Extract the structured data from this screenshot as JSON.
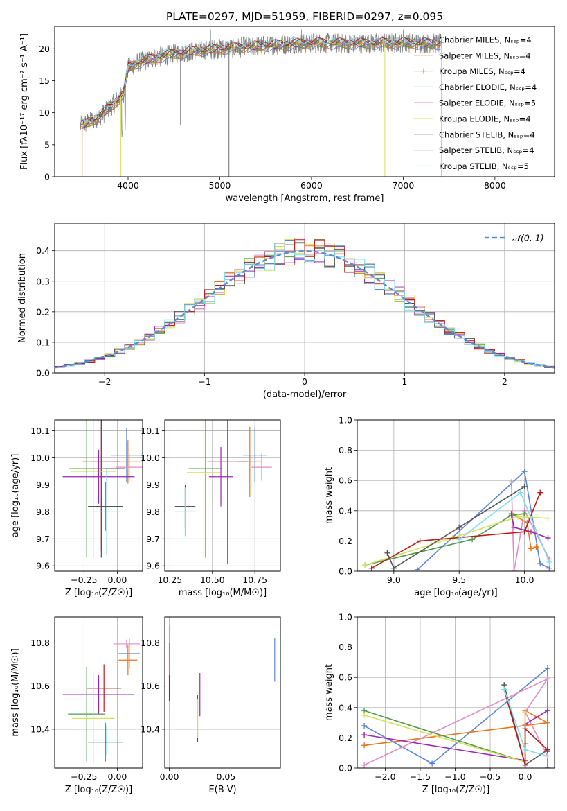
{
  "figure": {
    "title": "PLATE=0297, MJD=51959, FIBERID=0297, z=0.095"
  },
  "chart_data": [
    {
      "type": "line",
      "id": "spectrum",
      "xlabel": "wavelength [Angstrom, rest frame]",
      "ylabel": "Flux [fλ10⁻¹⁷ erg cm⁻² s⁻¹ A⁻¹]",
      "xlim": [
        3200,
        8650
      ],
      "ylim": [
        0,
        23.5
      ],
      "xticks": [
        4000,
        5000,
        6000,
        7000,
        8000
      ],
      "yticks": [
        0,
        5,
        10,
        15,
        20
      ],
      "grid": false,
      "legend_position": "upper right",
      "continuum": {
        "x": [
          3500,
          3700,
          3850,
          3950,
          4000,
          4100,
          4300,
          4500,
          4700,
          5000,
          5500,
          6000,
          6500,
          7000,
          7400
        ],
        "y": [
          8.0,
          9.5,
          11.5,
          13.0,
          17.0,
          17.8,
          18.6,
          19.2,
          19.6,
          20.0,
          20.5,
          20.9,
          20.8,
          20.9,
          20.8
        ]
      },
      "data_range": [
        3480,
        7420
      ],
      "series": [
        {
          "name": "Chabrier MILES, N_SSP=4",
          "color": "#5b84d6",
          "marker": "+"
        },
        {
          "name": "Salpeter MILES, N_SSP=4",
          "color": "#e8751a"
        },
        {
          "name": "Kroupa MILES, N_SSP=4",
          "color": "#b07e1c",
          "marker": "+"
        },
        {
          "name": "Chabrier ELODIE, N_SSP=4",
          "color": "#4f9a4f"
        },
        {
          "name": "Salpeter ELODIE, N_SSP=5",
          "color": "#9b27b0"
        },
        {
          "name": "Kroupa ELODIE, N_SSP=4",
          "color": "#d4e157"
        },
        {
          "name": "Chabrier STELIB, N_SSP=4",
          "color": "#555555"
        },
        {
          "name": "Salpeter STELIB, N_SSP=4",
          "color": "#b71c1c"
        },
        {
          "name": "Kroupa STELIB, N_SSP=5",
          "color": "#80deea"
        }
      ],
      "data_series_color": "#808080"
    },
    {
      "type": "line",
      "id": "residuals",
      "xlabel": "(data-model)/error",
      "ylabel": "Normed distribution",
      "xlim": [
        -2.5,
        2.5
      ],
      "ylim": [
        0,
        0.49
      ],
      "xticks": [
        -2,
        -1,
        0,
        1,
        2
      ],
      "yticks": [
        0.0,
        0.1,
        0.2,
        0.3,
        0.4
      ],
      "grid": true,
      "legend_position": "upper right",
      "reference": {
        "name": "𝒩(0, 1)",
        "color": "#5b8ad6"
      },
      "histogram_colors": [
        "#5b84d6",
        "#e8751a",
        "#e48bc2",
        "#4f9a4f",
        "#9b27b0",
        "#d4e157",
        "#555555",
        "#b71c1c",
        "#80deea"
      ]
    },
    {
      "type": "scatter",
      "id": "age-vs-Z",
      "xlabel": "Z [log₁₀(Z/Z☉)]",
      "ylabel": "age  [log₁₀(age/yr)]",
      "xlim": [
        -0.47,
        0.19
      ],
      "ylim": [
        9.58,
        10.14
      ],
      "xticks": [
        -0.25,
        0.0
      ],
      "yticks": [
        9.6,
        9.7,
        9.8,
        9.9,
        10.0,
        10.1
      ],
      "grid": true,
      "points": [
        {
          "x": 0.07,
          "y": 10.01,
          "xerr": 0.12,
          "yerr": 0.1,
          "color": "#5b84d6"
        },
        {
          "x": 0.08,
          "y": 9.985,
          "xerr": 0.11,
          "yerr": 0.08,
          "color": "#e8751a"
        },
        {
          "x": 0.09,
          "y": 9.965,
          "xerr": 0.1,
          "yerr": 0.05,
          "color": "#e48bc2"
        },
        {
          "x": -0.12,
          "y": 9.985,
          "xerr": 0.14,
          "yerr": 0.33,
          "color": "#b71c1c"
        },
        {
          "x": -0.12,
          "y": 9.96,
          "xerr": 0.18,
          "yerr": 0.33,
          "color": "#555555"
        },
        {
          "x": -0.18,
          "y": 9.95,
          "xerr": 0.17,
          "yerr": 0.32,
          "color": "#d4e157"
        },
        {
          "x": -0.23,
          "y": 9.96,
          "xerr": 0.13,
          "yerr": 0.33,
          "color": "#4f9a4f"
        },
        {
          "x": -0.14,
          "y": 9.93,
          "xerr": 0.27,
          "yerr": 0.1,
          "color": "#9b27b0"
        },
        {
          "x": -0.08,
          "y": 9.8,
          "xerr": 0.1,
          "yerr": 0.16,
          "color": "#80deea"
        },
        {
          "x": -0.09,
          "y": 9.82,
          "xerr": 0.13,
          "yerr": 0.09,
          "color": "#555555"
        }
      ]
    },
    {
      "type": "scatter",
      "id": "age-vs-mass",
      "xlabel": "mass [log₁₀(M/M☉)]",
      "ylabel": "",
      "xlim": [
        10.22,
        10.9
      ],
      "ylim": [
        9.58,
        10.14
      ],
      "xticks": [
        10.25,
        10.5,
        10.75
      ],
      "yticks": [
        9.6,
        9.7,
        9.8,
        9.9,
        10.0,
        10.1
      ],
      "grid": true,
      "points": [
        {
          "x": 10.75,
          "y": 10.01,
          "xerr": 0.07,
          "yerr": 0.1,
          "color": "#5b84d6"
        },
        {
          "x": 10.72,
          "y": 9.985,
          "xerr": 0.07,
          "yerr": 0.13,
          "color": "#e8751a"
        },
        {
          "x": 10.79,
          "y": 9.965,
          "xerr": 0.06,
          "yerr": 0.05,
          "color": "#e48bc2"
        },
        {
          "x": 10.59,
          "y": 9.985,
          "xerr": 0.12,
          "yerr": 0.38,
          "color": "#b71c1c"
        },
        {
          "x": 10.46,
          "y": 9.96,
          "xerr": 0.1,
          "yerr": 0.33,
          "color": "#4f9a4f"
        },
        {
          "x": 10.45,
          "y": 9.945,
          "xerr": 0.1,
          "yerr": 0.32,
          "color": "#d4e157"
        },
        {
          "x": 10.55,
          "y": 9.93,
          "xerr": 0.07,
          "yerr": 0.11,
          "color": "#9b27b0"
        },
        {
          "x": 10.34,
          "y": 9.82,
          "xerr": 0.06,
          "yerr": 0.08,
          "color": "#555555"
        },
        {
          "x": 10.34,
          "y": 9.8,
          "xerr": 0.06,
          "yerr": 0.09,
          "color": "#80deea"
        }
      ]
    },
    {
      "type": "line",
      "id": "massweight-vs-age",
      "xlabel": "age  [log₁₀(age/yr)]",
      "ylabel": "mass weight",
      "xlim": [
        8.72,
        10.23
      ],
      "ylim": [
        0,
        1.0
      ],
      "xticks": [
        9.0,
        9.5,
        10.0
      ],
      "yticks": [
        0.0,
        0.2,
        0.4,
        0.6,
        0.8,
        1.0
      ],
      "grid": true,
      "series": [
        {
          "color": "#5b84d6",
          "x": [
            9.18,
            10.0,
            10.12,
            10.19
          ],
          "y": [
            0.01,
            0.66,
            0.05,
            0.02
          ]
        },
        {
          "color": "#e8751a",
          "x": [
            9.92,
            10.02,
            10.05,
            10.09
          ],
          "y": [
            0.37,
            0.32,
            0.15,
            0.16
          ]
        },
        {
          "color": "#e48bc2",
          "x": [
            9.9,
            9.92,
            10.0,
            10.19
          ],
          "y": [
            0.59,
            0.0,
            0.4,
            0.08
          ]
        },
        {
          "color": "#4f9a4f",
          "x": [
            8.78,
            9.6,
            9.9,
            10.0
          ],
          "y": [
            0.04,
            0.21,
            0.37,
            0.38
          ]
        },
        {
          "color": "#9b27b0",
          "x": [
            9.9,
            9.92,
            10.05,
            10.18
          ],
          "y": [
            0.38,
            0.29,
            0.26,
            0.22
          ]
        },
        {
          "color": "#d4e157",
          "x": [
            8.78,
            9.45,
            9.95,
            10.18
          ],
          "y": [
            0.04,
            0.22,
            0.36,
            0.35
          ]
        },
        {
          "color": "#555555",
          "x": [
            8.95,
            9.0,
            9.5,
            10.0
          ],
          "y": [
            0.12,
            0.02,
            0.29,
            0.56
          ]
        },
        {
          "color": "#b71c1c",
          "x": [
            8.83,
            9.2,
            10.0,
            10.12
          ],
          "y": [
            0.02,
            0.2,
            0.26,
            0.52
          ]
        },
        {
          "color": "#80deea",
          "x": [
            9.5,
            9.97,
            10.19
          ],
          "y": [
            0.21,
            0.52,
            0.06
          ]
        }
      ]
    },
    {
      "type": "scatter",
      "id": "mass-vs-Z",
      "xlabel": "Z [log₁₀(Z/Z☉)]",
      "ylabel": "mass [log₁₀(M/M☉)]",
      "xlim": [
        -0.47,
        0.19
      ],
      "ylim": [
        10.22,
        10.92
      ],
      "xticks": [
        -0.25,
        0.0
      ],
      "yticks": [
        10.4,
        10.6,
        10.8
      ],
      "grid": true,
      "points": [
        {
          "x": 0.07,
          "y": 10.795,
          "xerr": 0.1,
          "yerr": 0.02,
          "color": "#e48bc2"
        },
        {
          "x": 0.09,
          "y": 10.75,
          "xerr": 0.08,
          "yerr": 0.07,
          "color": "#5b84d6"
        },
        {
          "x": 0.08,
          "y": 10.72,
          "xerr": 0.07,
          "yerr": 0.07,
          "color": "#e8751a"
        },
        {
          "x": -0.1,
          "y": 10.59,
          "xerr": 0.13,
          "yerr": 0.11,
          "color": "#b71c1c"
        },
        {
          "x": -0.14,
          "y": 10.56,
          "xerr": 0.27,
          "yerr": 0.09,
          "color": "#9b27b0"
        },
        {
          "x": -0.23,
          "y": 10.47,
          "xerr": 0.14,
          "yerr": 0.22,
          "color": "#4f9a4f"
        },
        {
          "x": -0.18,
          "y": 10.45,
          "xerr": 0.16,
          "yerr": 0.21,
          "color": "#d4e157"
        },
        {
          "x": -0.08,
          "y": 10.35,
          "xerr": 0.1,
          "yerr": 0.07,
          "color": "#80deea"
        },
        {
          "x": -0.09,
          "y": 10.34,
          "xerr": 0.13,
          "yerr": 0.09,
          "color": "#555555"
        }
      ]
    },
    {
      "type": "scatter",
      "id": "mass-vs-EBV",
      "xlabel": "E(B-V)",
      "ylabel": "",
      "xlim": [
        -0.004,
        0.098
      ],
      "ylim": [
        10.22,
        10.92
      ],
      "xticks": [
        0.0,
        0.05
      ],
      "yticks": [
        10.4,
        10.6,
        10.8
      ],
      "grid": true,
      "points": [
        {
          "x": 0.0,
          "y": 10.78,
          "yerr": 0.1,
          "color": "#e48bc2"
        },
        {
          "x": 0.0,
          "y": 10.72,
          "yerr": 0.08,
          "color": "#e8751a"
        },
        {
          "x": 0.0,
          "y": 10.59,
          "yerr": 0.06,
          "color": "#b71c1c"
        },
        {
          "x": 0.0,
          "y": 10.35,
          "yerr": 0.11,
          "color": "#80deea"
        },
        {
          "x": 0.025,
          "y": 10.45,
          "yerr": 0.11,
          "color": "#555555"
        },
        {
          "x": 0.025,
          "y": 10.45,
          "yerr": 0.09,
          "color": "#d4e157"
        },
        {
          "x": 0.027,
          "y": 10.56,
          "yerr": 0.1,
          "color": "#9b27b0"
        },
        {
          "x": 0.093,
          "y": 10.72,
          "yerr": 0.1,
          "color": "#5b84d6"
        }
      ]
    },
    {
      "type": "line",
      "id": "massweight-vs-Z",
      "xlabel": "Z [log₁₀(Z/Z☉)]",
      "ylabel": "mass weight",
      "xlim": [
        -2.4,
        0.42
      ],
      "ylim": [
        0,
        1.0
      ],
      "xticks": [
        -2.0,
        -1.5,
        -1.0,
        -0.5,
        0.0
      ],
      "yticks": [
        0.0,
        0.2,
        0.4,
        0.6,
        0.8,
        1.0
      ],
      "grid": true,
      "series": [
        {
          "color": "#5b84d6",
          "x": [
            -2.3,
            -1.33,
            0.32,
            0.32
          ],
          "y": [
            0.28,
            0.03,
            0.66,
            0.0
          ]
        },
        {
          "color": "#e8751a",
          "x": [
            -2.3,
            0.32,
            0.0,
            0.0
          ],
          "y": [
            0.15,
            0.3,
            0.38,
            0.16
          ]
        },
        {
          "color": "#e48bc2",
          "x": [
            -2.3,
            0.32,
            0.0,
            0.32
          ],
          "y": [
            0.02,
            0.59,
            0.37,
            0.08
          ]
        },
        {
          "color": "#4f9a4f",
          "x": [
            -2.3,
            0.0
          ],
          "y": [
            0.38,
            0.04
          ]
        },
        {
          "color": "#9b27b0",
          "x": [
            -2.3,
            0.0,
            0.0,
            0.32
          ],
          "y": [
            0.22,
            0.05,
            0.29,
            0.38
          ]
        },
        {
          "color": "#d4e157",
          "x": [
            -2.3,
            0.0,
            0.0
          ],
          "y": [
            0.35,
            0.04,
            0.37
          ]
        },
        {
          "color": "#555555",
          "x": [
            -0.3,
            0.0,
            0.32,
            0.32
          ],
          "y": [
            0.55,
            0.02,
            0.12,
            0.11
          ]
        },
        {
          "color": "#b71c1c",
          "x": [
            -0.3,
            0.0,
            0.0,
            0.32
          ],
          "y": [
            0.52,
            0.02,
            0.26,
            0.12
          ]
        },
        {
          "color": "#80deea",
          "x": [
            -0.3,
            0.0,
            0.32
          ],
          "y": [
            0.52,
            0.12,
            0.08
          ]
        }
      ]
    }
  ]
}
